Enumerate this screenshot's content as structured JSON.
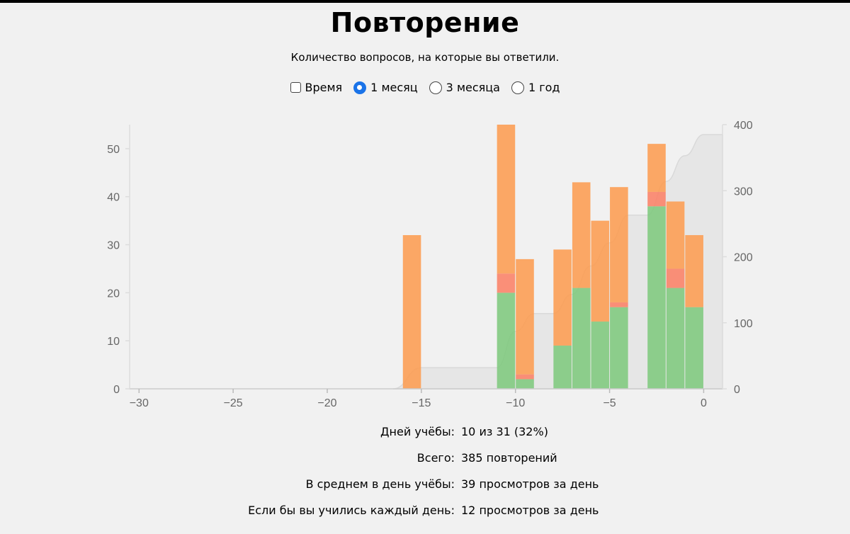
{
  "title": "Повторение",
  "subtitle": "Количество вопросов, на которые вы ответили.",
  "controls": {
    "time_label": "Время",
    "time_checked": false,
    "ranges": [
      {
        "label": "1 месяц",
        "checked": true
      },
      {
        "label": "3 месяца",
        "checked": false
      },
      {
        "label": "1 год",
        "checked": false
      }
    ]
  },
  "chart_data": {
    "type": "bar",
    "stacked": true,
    "x_ticks": [
      "−30",
      "−25",
      "−20",
      "−15",
      "−10",
      "−5",
      "0"
    ],
    "x_tick_values": [
      -30,
      -25,
      -20,
      -15,
      -10,
      -5,
      0
    ],
    "xlim": [
      -30.5,
      1
    ],
    "y_ticks": [
      0,
      10,
      20,
      30,
      40,
      50
    ],
    "ylim": [
      0,
      55
    ],
    "y2_ticks": [
      0,
      100,
      200,
      300,
      400
    ],
    "y2lim": [
      0,
      400
    ],
    "grid": false,
    "legend": "none",
    "x": [
      -15.5,
      -10.5,
      -9.5,
      -7.5,
      -6.5,
      -5.5,
      -4.5,
      -2.5,
      -1.5,
      -0.5
    ],
    "series": [
      {
        "color": "#7bc87a",
        "values": [
          0,
          20,
          2,
          9,
          21,
          14,
          17,
          38,
          21,
          17
        ]
      },
      {
        "color": "#fb7e63",
        "values": [
          0,
          4,
          1,
          0,
          0,
          0,
          1,
          3,
          4,
          0
        ]
      },
      {
        "color": "#fd9a4c",
        "values": [
          32,
          31,
          24,
          20,
          22,
          21,
          24,
          10,
          14,
          15
        ]
      }
    ],
    "cumulative": {
      "x": [
        -16.5,
        -15,
        -11,
        -10,
        -9,
        -8,
        -7,
        -6,
        -5,
        -4,
        -3,
        -2,
        -1,
        0,
        1
      ],
      "values": [
        0,
        32,
        32,
        87,
        114,
        114,
        143,
        186,
        221,
        263,
        263,
        314,
        353,
        385,
        385
      ],
      "color": "#d9d9d9"
    }
  },
  "stats": [
    {
      "label": "Дней учёбы:",
      "value": "10 из 31 (32%)"
    },
    {
      "label": "Всего:",
      "value": "385 повторений"
    },
    {
      "label": "В среднем в день учёбы:",
      "value": "39 просмотров за день"
    },
    {
      "label": "Если бы вы учились каждый день:",
      "value": "12 просмотров за день"
    }
  ]
}
